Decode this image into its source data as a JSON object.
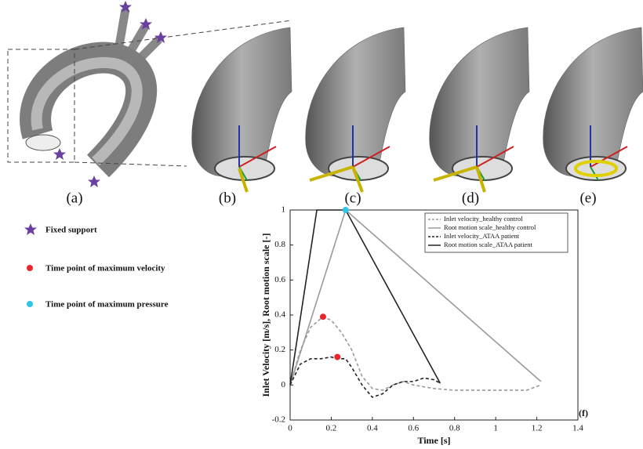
{
  "panels": [
    "(a)",
    "(b)",
    "(c)",
    "(d)",
    "(e)"
  ],
  "key": {
    "fixed_support": "Fixed support"
  },
  "chart_data": {
    "type": "line",
    "label": "(f)",
    "xlabel": "Time [s]",
    "ylabel": "Inlet Velocity [m/s], Root motion scale [-]",
    "xlim": [
      0,
      1.4
    ],
    "xticks": [
      0,
      0.2,
      0.4,
      0.6,
      0.8,
      1,
      1.2,
      1.4
    ],
    "ylim": [
      -0.2,
      1
    ],
    "yticks": [
      -0.2,
      0,
      0.2,
      0.4,
      0.6,
      0.8,
      1
    ],
    "grid": false,
    "legend": "upper right",
    "series": [
      {
        "name": "Inlet velocity_healthy control",
        "color": "#9a9a9a",
        "style": "dashed",
        "x": [
          0,
          0.05,
          0.1,
          0.16,
          0.2,
          0.25,
          0.3,
          0.35,
          0.4,
          0.45,
          0.5,
          0.55,
          0.6,
          0.7,
          0.8,
          1.0,
          1.15,
          1.22
        ],
        "values": [
          0,
          0.2,
          0.33,
          0.39,
          0.37,
          0.3,
          0.2,
          0.05,
          -0.02,
          -0.03,
          0,
          0.02,
          0,
          -0.02,
          -0.03,
          -0.03,
          -0.03,
          0
        ]
      },
      {
        "name": "Root motion scale_healthy control",
        "color": "#9a9a9a",
        "style": "solid",
        "x": [
          0,
          0.27,
          1.22
        ],
        "values": [
          0,
          1,
          0.02
        ]
      },
      {
        "name": "Inlet velocity_ATAA patient",
        "color": "#222222",
        "style": "dashed",
        "x": [
          0,
          0.05,
          0.1,
          0.15,
          0.2,
          0.23,
          0.27,
          0.3,
          0.35,
          0.4,
          0.45,
          0.5,
          0.55,
          0.6,
          0.65,
          0.7,
          0.73
        ],
        "values": [
          0,
          0.12,
          0.15,
          0.15,
          0.16,
          0.15,
          0.15,
          0.1,
          0,
          -0.07,
          -0.05,
          0,
          0.02,
          0.02,
          0.04,
          0.03,
          0.01
        ]
      },
      {
        "name": "Root motion scale_ATAA patient",
        "color": "#222222",
        "style": "solid",
        "x": [
          0,
          0.13,
          0.27,
          0.73
        ],
        "values": [
          0,
          1,
          1,
          0.01
        ]
      }
    ],
    "markers": [
      {
        "name": "Time point of maximum velocity",
        "color": "#e8262b",
        "x": [
          0.16,
          0.23
        ],
        "values": [
          0.39,
          0.16
        ]
      },
      {
        "name": "Time point of maximum pressure",
        "color": "#2fc4e8",
        "x": [
          0.27
        ],
        "values": [
          1
        ]
      }
    ]
  }
}
